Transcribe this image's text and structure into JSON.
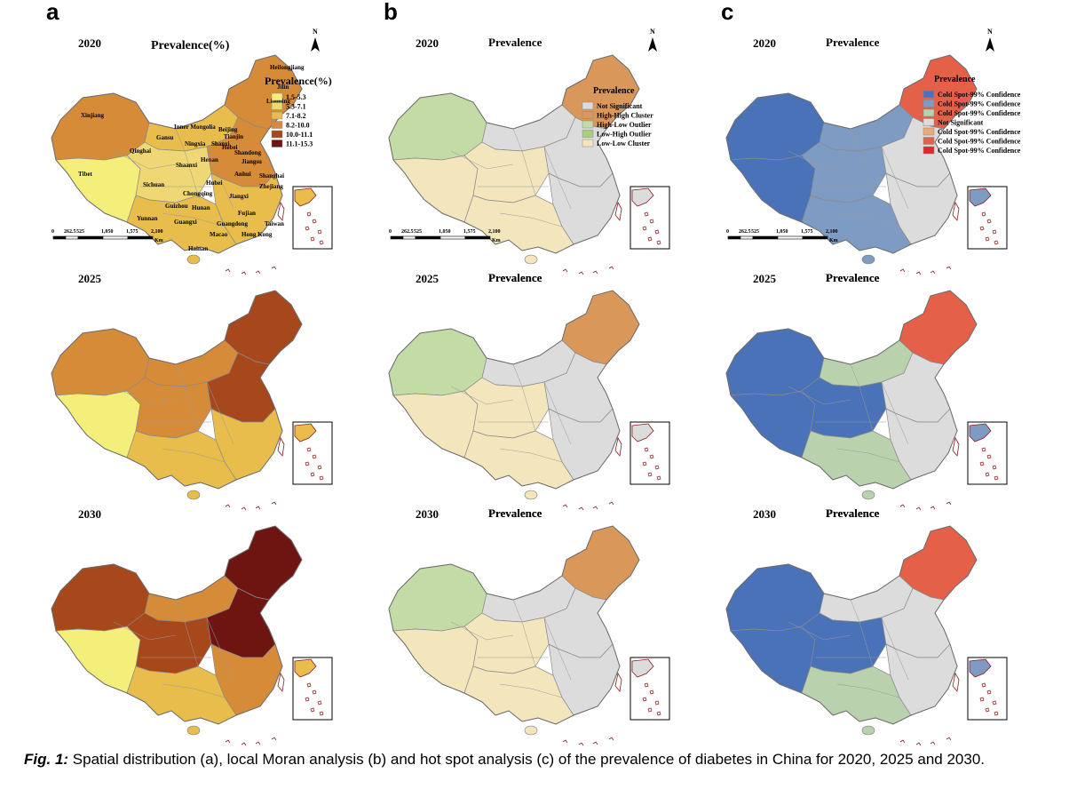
{
  "panel_letters": [
    "a",
    "b",
    "c"
  ],
  "years": [
    "2020",
    "2025",
    "2030"
  ],
  "panel_a": {
    "title_with_unit": "Prevalence(%)",
    "legend": {
      "title": "Prevalence(%)",
      "items": [
        {
          "label": "1.5-5.3",
          "color": "#f4ef7a"
        },
        {
          "label": "5.3-7.1",
          "color": "#eed774"
        },
        {
          "label": "7.1-8.2",
          "color": "#e8bd4b"
        },
        {
          "label": "8.2-10.0",
          "color": "#d68b38"
        },
        {
          "label": "10.0-11.1",
          "color": "#a6471c"
        },
        {
          "label": "11.1-15.3",
          "color": "#6e1411"
        }
      ]
    },
    "province_labels": [
      "Heilongjiang",
      "Jilin",
      "Liaoning",
      "Xinjiang",
      "Inner Mongolia",
      "Beijing",
      "Tianjin",
      "Gansu",
      "Ningxia",
      "Shanxi",
      "Hebei",
      "Qinghai",
      "Shandong",
      "Henan",
      "Jiangsu",
      "Tibet",
      "Shaanxi",
      "Anhui",
      "Shanghai",
      "Sichuan",
      "Hubei",
      "Zhejiang",
      "Chongqing",
      "Jiangxi",
      "Guizhou",
      "Hunan",
      "Fujian",
      "Yunnan",
      "Guangxi",
      "Guangdong",
      "Taiwan",
      "Macao",
      "Hong Kong",
      "Hainan"
    ]
  },
  "panel_b": {
    "title": "Prevalence",
    "legend": {
      "title": "Prevalence",
      "items": [
        {
          "label": "Not Significant",
          "color": "#dcdcdc"
        },
        {
          "label": "High-High Cluster",
          "color": "#d9985a"
        },
        {
          "label": "High-Low Outlier",
          "color": "#c3dca6"
        },
        {
          "label": "Low-High Outlier",
          "color": "#a9cf7e"
        },
        {
          "label": "Low-Low Cluster",
          "color": "#f3e6bd"
        }
      ]
    }
  },
  "panel_c": {
    "title": "Prevalence",
    "legend": {
      "title": "Prevalence",
      "items": [
        {
          "label": "Cold Spot-99% Confidence",
          "color": "#4a72b8"
        },
        {
          "label": "Cold Spot-99% Confidence",
          "color": "#7e9cc3"
        },
        {
          "label": "Cold Spot-99% Confidence",
          "color": "#b9d1ad"
        },
        {
          "label": "Not Significant",
          "color": "#dcdcdc"
        },
        {
          "label": "Cold Spot-99% Confidence",
          "color": "#eba978"
        },
        {
          "label": "Cold Spot-99% Confidence",
          "color": "#e46049"
        },
        {
          "label": "Cold Spot-99% Confidence",
          "color": "#db2b26"
        }
      ]
    }
  },
  "scale_bar": {
    "ticks": [
      "0",
      "262.5",
      "525",
      "1,050",
      "1,575",
      "2,100"
    ],
    "unit": "Km"
  },
  "north_arrow_label": "N",
  "caption": {
    "label": "Fig. 1:",
    "text": " Spatial distribution (a), local Moran analysis (b) and hot spot analysis (c) of the prevalence of diabetes in China for 2020, 2025 and 2030."
  }
}
